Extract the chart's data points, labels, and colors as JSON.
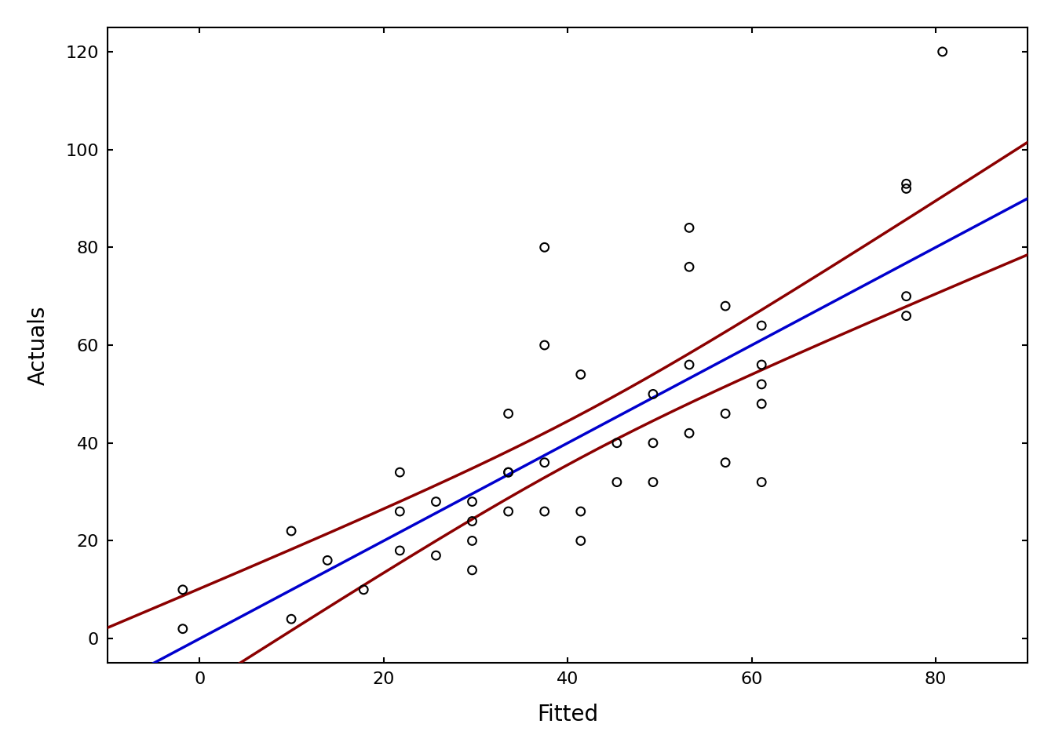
{
  "speed": [
    4,
    4,
    7,
    7,
    8,
    9,
    10,
    10,
    10,
    11,
    11,
    12,
    12,
    12,
    12,
    13,
    13,
    13,
    13,
    14,
    14,
    14,
    14,
    15,
    15,
    15,
    16,
    16,
    17,
    17,
    17,
    18,
    18,
    18,
    18,
    19,
    19,
    19,
    20,
    20,
    20,
    20,
    20,
    24,
    24,
    24,
    24,
    25
  ],
  "dist": [
    2,
    10,
    4,
    22,
    16,
    10,
    18,
    26,
    34,
    17,
    28,
    14,
    20,
    24,
    28,
    26,
    34,
    34,
    46,
    26,
    36,
    60,
    80,
    20,
    26,
    54,
    32,
    40,
    32,
    40,
    50,
    42,
    56,
    76,
    84,
    36,
    46,
    68,
    32,
    48,
    52,
    56,
    64,
    66,
    70,
    92,
    93,
    120
  ],
  "intercept": -17.579095,
  "slope": 3.932409,
  "title": "",
  "xlabel": "Fitted",
  "ylabel": "Actuals",
  "xlim": [
    -10,
    90
  ],
  "ylim": [
    -5,
    125
  ],
  "fit_color": "#0000CD",
  "ci_color": "#8B0000",
  "point_color": "#000000",
  "background_color": "#FFFFFF",
  "fit_linewidth": 2.5,
  "ci_linewidth": 2.5,
  "point_size": 60,
  "xticks": [
    0,
    20,
    40,
    60,
    80
  ],
  "yticks": [
    0,
    20,
    40,
    60,
    80,
    100,
    120
  ]
}
